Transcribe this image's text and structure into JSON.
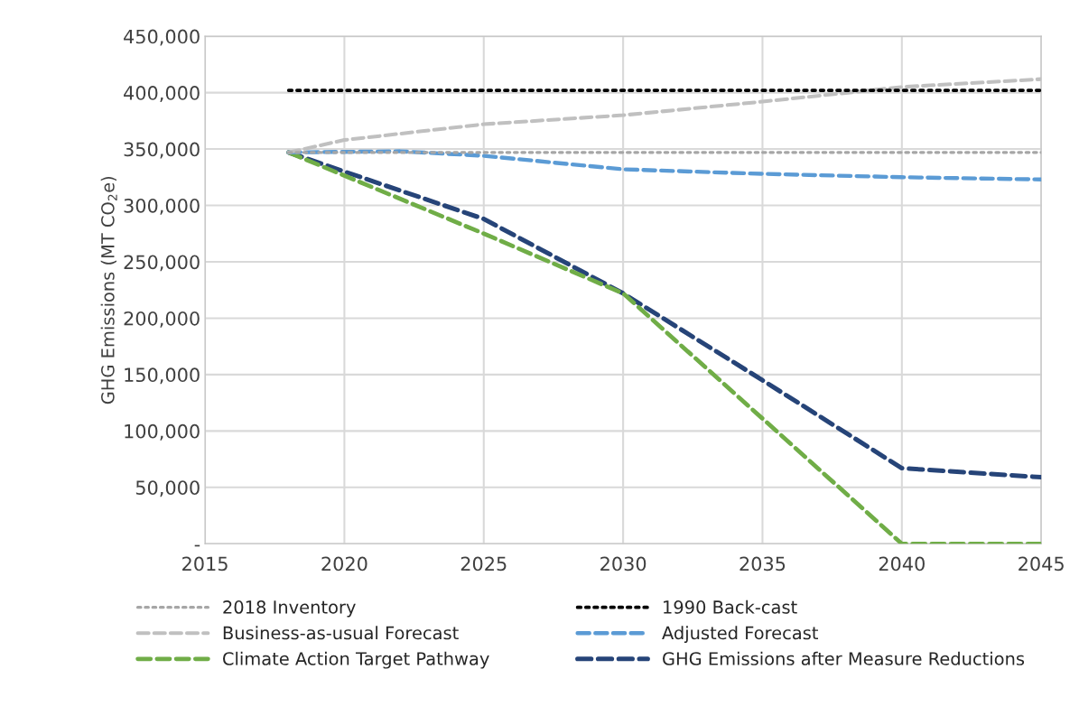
{
  "chart_data": {
    "type": "line",
    "ylabel": "GHG Emissions (MT CO$_{2}$e)",
    "xlim": [
      2015,
      2045
    ],
    "xticks": [
      2015,
      2020,
      2025,
      2030,
      2035,
      2040,
      2045
    ],
    "ylim": [
      0,
      450000
    ],
    "yticks": [
      {
        "value": 0,
        "label": "-"
      },
      {
        "value": 50000,
        "label": "50,000"
      },
      {
        "value": 100000,
        "label": "100,000"
      },
      {
        "value": 150000,
        "label": "150,000"
      },
      {
        "value": 200000,
        "label": "200,000"
      },
      {
        "value": 250000,
        "label": "250,000"
      },
      {
        "value": 300000,
        "label": "300,000"
      },
      {
        "value": 350000,
        "label": "350,000"
      },
      {
        "value": 400000,
        "label": "400,000"
      },
      {
        "value": 450000,
        "label": "450,000"
      }
    ],
    "grid": true,
    "legend": "bottom",
    "series": [
      {
        "name": "2018 Inventory",
        "color": "#a6a6a6",
        "line_style": "dotted",
        "x": [
          2018,
          2045
        ],
        "values": [
          347000,
          347000
        ]
      },
      {
        "name": "1990 Back-cast",
        "color": "#000000",
        "line_style": "dotted",
        "x": [
          2018,
          2045
        ],
        "values": [
          402000,
          402000
        ]
      },
      {
        "name": "Business-as-usual Forecast",
        "color": "#c0c0c0",
        "line_style": "dashed",
        "x": [
          2018,
          2020,
          2025,
          2030,
          2035,
          2040,
          2045
        ],
        "values": [
          347000,
          358000,
          372000,
          380000,
          392000,
          405000,
          412000
        ]
      },
      {
        "name": "Adjusted Forecast",
        "color": "#5b9bd5",
        "line_style": "dashed",
        "x": [
          2018,
          2022,
          2025,
          2030,
          2035,
          2040,
          2045
        ],
        "values": [
          347000,
          348000,
          344000,
          332000,
          328000,
          325000,
          323000
        ]
      },
      {
        "name": "Climate Action Target Pathway",
        "color": "#70ad47",
        "line_style": "dashed",
        "x": [
          2018,
          2025,
          2030,
          2040,
          2045
        ],
        "values": [
          347000,
          275000,
          222000,
          0,
          0
        ]
      },
      {
        "name": "GHG Emissions after Measure Reductions",
        "color": "#264478",
        "line_style": "dashed",
        "x": [
          2018,
          2020,
          2025,
          2030,
          2035,
          2040,
          2045
        ],
        "values": [
          347000,
          330000,
          288000,
          222000,
          145000,
          67000,
          59000
        ]
      }
    ]
  }
}
